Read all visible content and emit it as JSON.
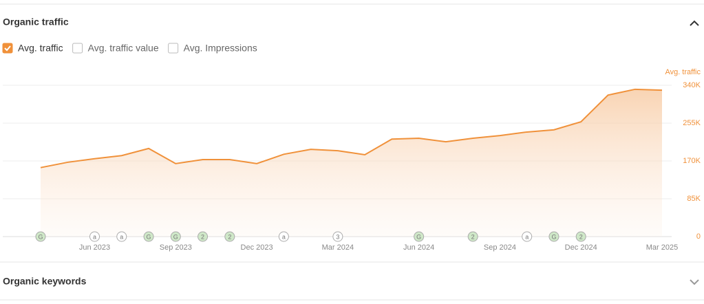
{
  "header": {
    "title": "Organic traffic"
  },
  "controls": [
    {
      "label": "Avg. traffic",
      "checked": true
    },
    {
      "label": "Avg. traffic value",
      "checked": false
    },
    {
      "label": "Avg. Impressions",
      "checked": false
    }
  ],
  "chart_data": {
    "type": "area",
    "y_axis_title": "Avg. traffic",
    "color": "#f0913a",
    "categories": [
      null,
      null,
      "Jun 2023",
      null,
      null,
      "Sep 2023",
      null,
      null,
      "Dec 2023",
      null,
      null,
      "Mar 2024",
      null,
      null,
      "Jun 2024",
      null,
      null,
      "Sep 2024",
      null,
      null,
      "Dec 2024",
      null,
      null,
      "Mar 2025"
    ],
    "values": [
      155000,
      167000,
      175000,
      182000,
      198000,
      164000,
      173000,
      173000,
      164000,
      185000,
      196000,
      193000,
      184000,
      219000,
      221000,
      213000,
      221000,
      227000,
      235000,
      240000,
      258000,
      318000,
      331000,
      329000
    ],
    "events": [
      "G",
      null,
      "a",
      "a",
      "G",
      "G",
      "2",
      "2",
      null,
      "a",
      null,
      "3",
      null,
      null,
      "G",
      null,
      "2",
      null,
      "a",
      "G",
      "2",
      null,
      null,
      null
    ],
    "ylim": [
      0,
      340000
    ],
    "yticks": [
      0,
      {
        "value": 85000,
        "label": "85K"
      },
      {
        "value": 170000,
        "label": "170K"
      },
      {
        "value": 255000,
        "label": "255K"
      },
      {
        "value": 340000,
        "label": "340K"
      }
    ],
    "grid": true
  },
  "footer": {
    "title": "Organic keywords"
  }
}
